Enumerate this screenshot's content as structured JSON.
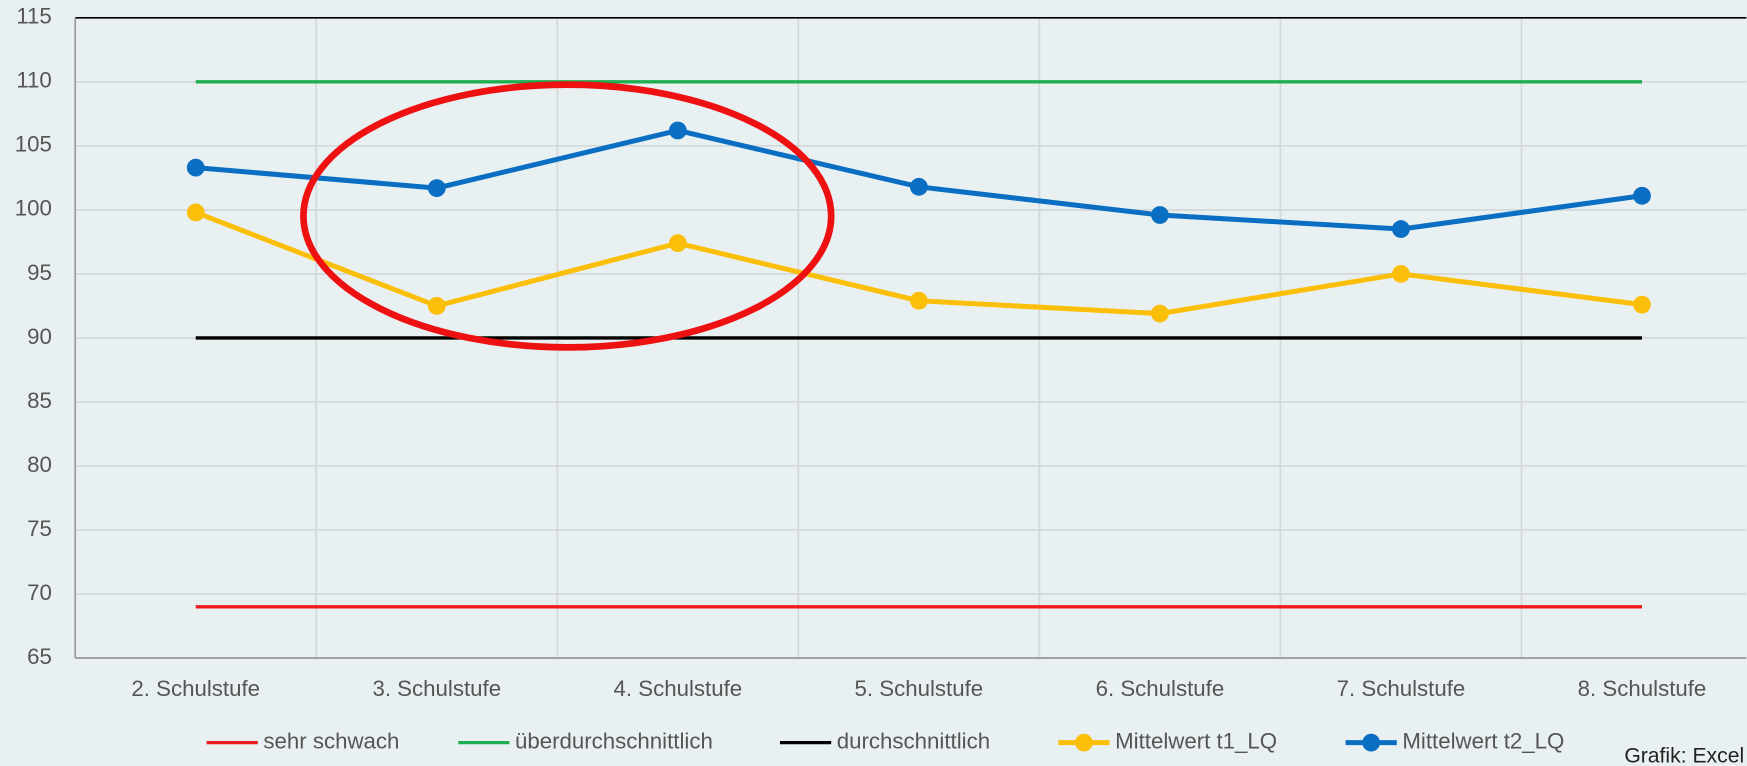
{
  "chart_data": {
    "type": "line",
    "categories": [
      "2. Schulstufe",
      "3. Schulstufe",
      "4. Schulstufe",
      "5. Schulstufe",
      "6. Schulstufe",
      "7. Schulstufe",
      "8. Schulstufe"
    ],
    "series": [
      {
        "name": "sehr schwach",
        "color": "#ee1c1c",
        "markers": false,
        "values": [
          69,
          69,
          69,
          69,
          69,
          69,
          69
        ]
      },
      {
        "name": "überdurchschnittlich",
        "color": "#1fae4f",
        "markers": false,
        "values": [
          110,
          110,
          110,
          110,
          110,
          110,
          110
        ]
      },
      {
        "name": "durchschnittlich",
        "color": "#000000",
        "markers": false,
        "values": [
          90,
          90,
          90,
          90,
          90,
          90,
          90
        ]
      },
      {
        "name": "Mittelwert t1_LQ",
        "color": "#fbbf0a",
        "markers": true,
        "values": [
          99.8,
          92.5,
          97.4,
          92.9,
          91.9,
          95.0,
          92.6
        ]
      },
      {
        "name": "Mittelwert t2_LQ",
        "color": "#0a6fc2",
        "markers": true,
        "values": [
          103.3,
          101.7,
          106.2,
          101.8,
          99.6,
          98.5,
          101.1
        ]
      }
    ],
    "ylim": [
      65,
      115
    ],
    "yticks": [
      65,
      70,
      75,
      80,
      85,
      90,
      95,
      100,
      105,
      110,
      115
    ],
    "grid": true,
    "legend": "bottom",
    "source": "Grafik: Excel"
  }
}
